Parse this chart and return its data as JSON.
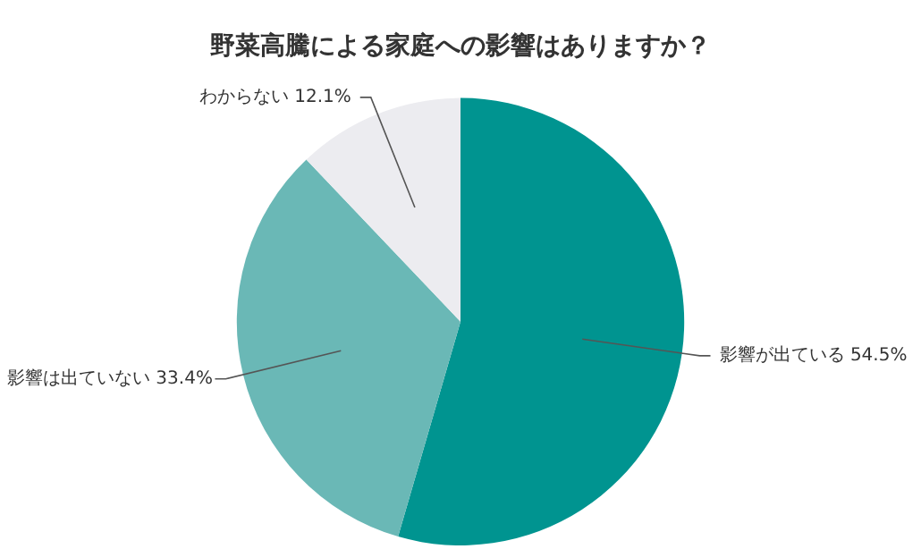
{
  "chart_data": {
    "type": "pie",
    "title": "野菜高騰による家庭への影響はありますか？",
    "categories": [
      "影響が出ている",
      "影響は出ていない",
      "わからない"
    ],
    "values": [
      54.5,
      33.4,
      12.1
    ],
    "value_labels": [
      "54.5%",
      "33.4%",
      "12.1%"
    ],
    "colors": [
      "#009490",
      "#6ab8b6",
      "#ececf0"
    ],
    "legend": false
  }
}
